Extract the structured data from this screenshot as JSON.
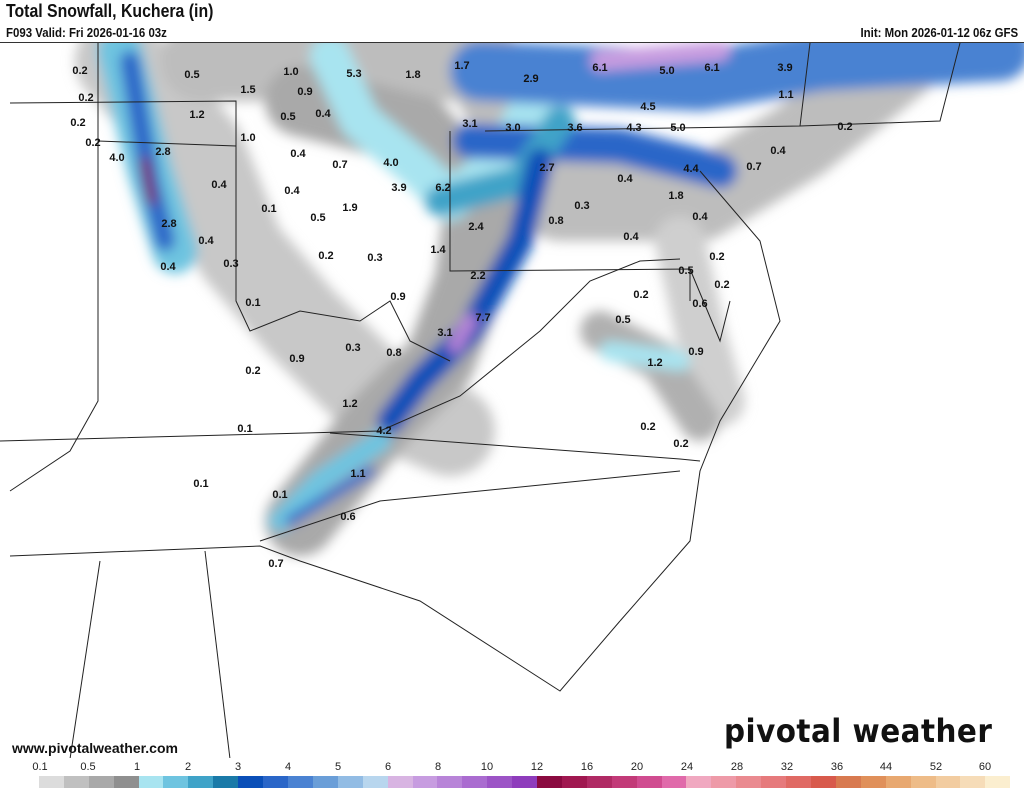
{
  "header": {
    "title": "Total Snowfall, Kuchera (in)",
    "valid": "F093 Valid: Fri 2026-01-16 03z",
    "init": "Init: Mon 2026-01-12 06z GFS"
  },
  "footer": {
    "url": "www.pivotalweather.com",
    "logo": "pivotal weather"
  },
  "colorbar": {
    "tick_labels": [
      "0.1",
      "0.5",
      "1",
      "2",
      "3",
      "4",
      "5",
      "6",
      "8",
      "10",
      "12",
      "16",
      "20",
      "24",
      "28",
      "32",
      "36",
      "44",
      "52",
      "60"
    ],
    "colors": [
      "#ffffff",
      "#dcdcdc",
      "#c0c0c0",
      "#a9a9a9",
      "#8f8f8f",
      "#a8e4f0",
      "#6ec4e0",
      "#3fa3c8",
      "#1a7aa8",
      "#0a4fb8",
      "#2a66c8",
      "#4a82d2",
      "#6a9ed8",
      "#92bce4",
      "#b8d6ee",
      "#d8b4e2",
      "#c79ce0",
      "#b884d8",
      "#aa6cd0",
      "#9c54c6",
      "#8e3cbc",
      "#8a0a40",
      "#a01850",
      "#b02a64",
      "#c23a78",
      "#d04c90",
      "#e06aaa",
      "#f0a8c0",
      "#ee9aa8",
      "#ea8a90",
      "#e67a7c",
      "#e06a64",
      "#d85a4c",
      "#d87a50",
      "#e0905a",
      "#e8a870",
      "#eebc88",
      "#f2cca0",
      "#f6dcb8",
      "#fbeecf"
    ]
  },
  "map_labels": [
    "0.2",
    "0.5",
    "1.0",
    "5.3",
    "1.8",
    "1.7",
    "2.9",
    "6.1",
    "5.0",
    "6.1",
    "3.9",
    "0.2",
    "1.5",
    "0.9",
    "4.5",
    "1.1",
    "0.2",
    "1.2",
    "0.5",
    "0.4",
    "3.1",
    "3.0",
    "3.6",
    "4.3",
    "5.0",
    "0.2",
    "0.2",
    "4.0",
    "2.8",
    "1.0",
    "0.4",
    "0.7",
    "4.0",
    "2.7",
    "4.4",
    "0.7",
    "0.4",
    "0.4",
    "0.4",
    "3.9",
    "6.2",
    "0.4",
    "1.8",
    "0.1",
    "1.9",
    "0.5",
    "0.3",
    "0.8",
    "0.4",
    "2.8",
    "0.4",
    "2.4",
    "0.4",
    "0.2",
    "0.3",
    "1.4",
    "0.2",
    "0.4",
    "0.3",
    "2.2",
    "0.5",
    "0.1",
    "0.9",
    "0.2",
    "0.2",
    "0.6",
    "7.7",
    "0.5",
    "3.1",
    "0.3",
    "0.8",
    "0.9",
    "1.2",
    "0.9",
    "0.2",
    "1.2",
    "0.1",
    "4.2",
    "0.2",
    "0.2",
    "1.1",
    "0.1",
    "0.1",
    "0.6",
    "0.7"
  ]
}
